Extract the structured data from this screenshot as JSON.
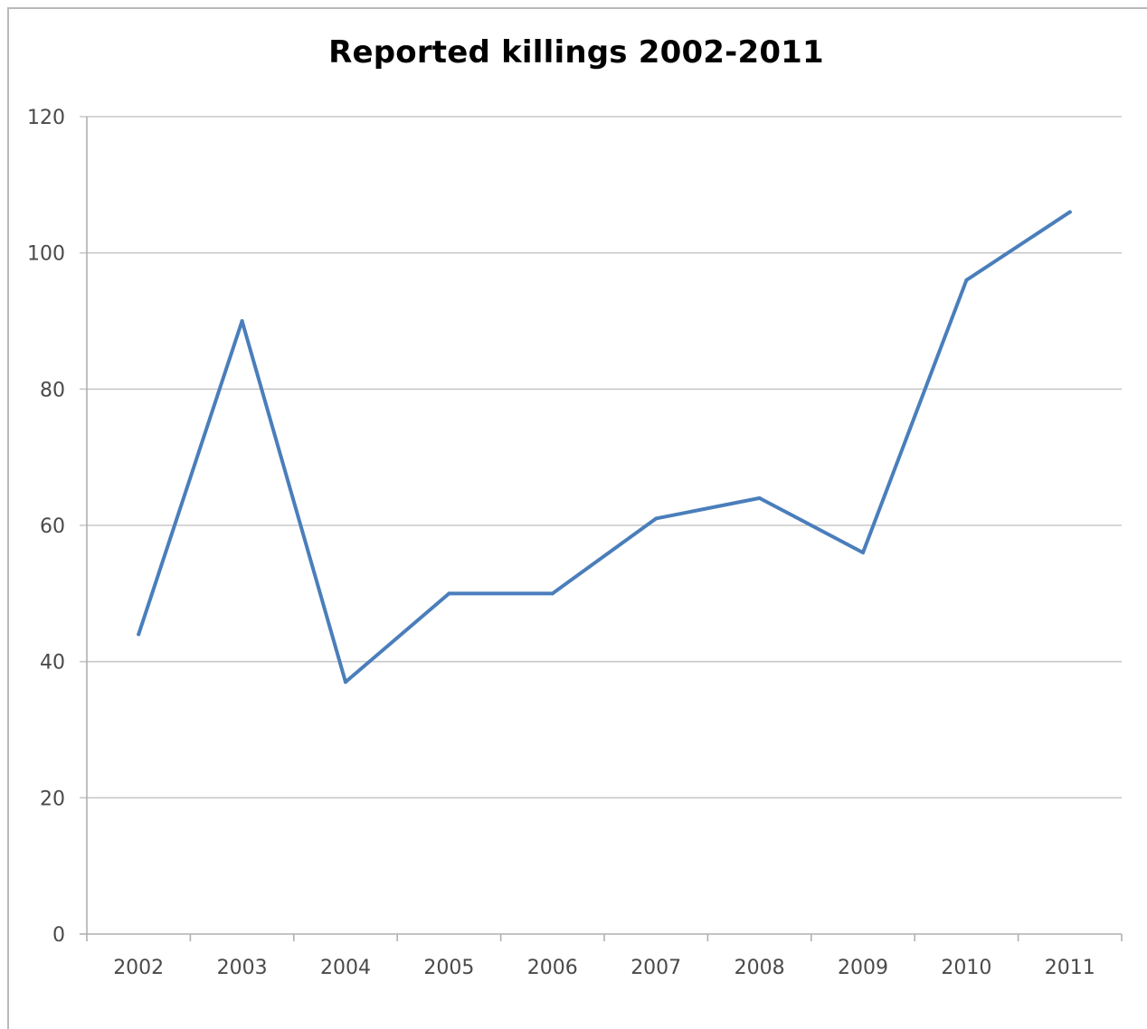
{
  "chart_data": {
    "type": "line",
    "title": "Reported killings 2002-2011",
    "xlabel": "",
    "ylabel": "",
    "categories": [
      "2002",
      "2003",
      "2004",
      "2005",
      "2006",
      "2007",
      "2008",
      "2009",
      "2010",
      "2011"
    ],
    "series": [
      {
        "values": [
          44,
          90,
          37,
          50,
          50,
          61,
          64,
          56,
          96,
          106
        ],
        "color": "#4a7ebb"
      }
    ],
    "ylim": [
      0,
      120
    ],
    "yticks": [
      0,
      20,
      40,
      60,
      80,
      100,
      120
    ],
    "ytick_labels": [
      "0",
      "20",
      "40",
      "60",
      "80",
      "100",
      "120"
    ],
    "grid": "horizontal",
    "legend": "none",
    "colors": {
      "line": "#4a7ebb",
      "grid": "#c8c8c8",
      "axis": "#b0b0b0",
      "tick_text": "#4a4a4a",
      "title_text": "#000000",
      "frame": "#b9b9b9"
    }
  }
}
